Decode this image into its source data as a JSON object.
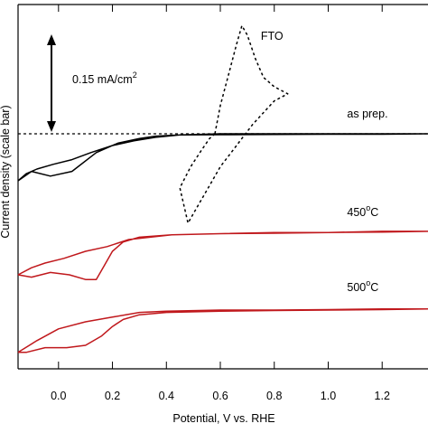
{
  "chart_data": {
    "type": "line",
    "title": "",
    "xlabel": "Potential, V vs. RHE",
    "ylabel": "Current density (scale bar)",
    "xlim": [
      -0.15,
      1.37
    ],
    "ylim": [
      -1.0,
      0.55
    ],
    "x_ticks": [
      -0.2,
      0.0,
      0.2,
      0.4,
      0.6,
      0.8,
      1.0,
      1.2
    ],
    "x_tick_labels": [
      "0.0",
      "0.2",
      "0.4",
      "0.6",
      "0.8",
      "1.0",
      "1.2"
    ],
    "y_ticks_visible": false,
    "grid": false,
    "legend": "none",
    "scale_bar": {
      "label": "0.15 mA/cm",
      "superscript": "2",
      "value_mA_cm2": 0.15
    },
    "reference_line": {
      "style": "dashed",
      "y": 0.0
    },
    "series": [
      {
        "name": "FTO",
        "color": "#000000",
        "style": "dashed",
        "x": [
          0.58,
          0.6,
          0.63,
          0.66,
          0.68,
          0.7,
          0.73,
          0.76,
          0.8,
          0.85,
          0.8,
          0.76,
          0.72,
          0.68,
          0.64,
          0.6,
          0.57,
          0.54,
          0.51,
          0.48,
          0.45,
          0.49,
          0.53,
          0.56,
          0.58
        ],
        "y": [
          0.0,
          0.12,
          0.25,
          0.38,
          0.46,
          0.42,
          0.32,
          0.24,
          0.2,
          0.17,
          0.14,
          0.09,
          0.04,
          -0.02,
          -0.08,
          -0.14,
          -0.2,
          -0.26,
          -0.32,
          -0.38,
          -0.23,
          -0.14,
          -0.07,
          -0.02,
          0.0
        ]
      },
      {
        "name": "as prep.",
        "color": "#000000",
        "style": "solid",
        "x": [
          -0.15,
          -0.12,
          -0.08,
          -0.02,
          0.05,
          0.12,
          0.2,
          0.28,
          0.36,
          0.45,
          0.6,
          0.8,
          1.0,
          1.2,
          1.37,
          1.2,
          1.0,
          0.8,
          0.6,
          0.45,
          0.36,
          0.3,
          0.22,
          0.14,
          0.05,
          -0.03,
          -0.1,
          -0.15
        ],
        "y": [
          -0.2,
          -0.17,
          -0.15,
          -0.13,
          -0.11,
          -0.08,
          -0.05,
          -0.03,
          -0.015,
          -0.005,
          0.0,
          0.0,
          0.0,
          0.0,
          0.0,
          -0.002,
          -0.002,
          -0.003,
          -0.004,
          -0.005,
          -0.01,
          -0.02,
          -0.04,
          -0.08,
          -0.16,
          -0.18,
          -0.16,
          -0.2
        ]
      },
      {
        "name": "450°C",
        "color": "#c0181c",
        "style": "solid",
        "x": [
          -0.15,
          -0.1,
          -0.05,
          0.02,
          0.1,
          0.18,
          0.26,
          0.34,
          0.42,
          0.6,
          0.8,
          1.0,
          1.2,
          1.37,
          1.2,
          1.0,
          0.8,
          0.6,
          0.42,
          0.3,
          0.24,
          0.2,
          0.17,
          0.14,
          0.1,
          0.04,
          -0.03,
          -0.1,
          -0.15
        ],
        "y": [
          -0.6,
          -0.57,
          -0.55,
          -0.53,
          -0.5,
          -0.48,
          -0.45,
          -0.44,
          -0.43,
          -0.425,
          -0.42,
          -0.42,
          -0.415,
          -0.415,
          -0.418,
          -0.42,
          -0.423,
          -0.425,
          -0.43,
          -0.44,
          -0.46,
          -0.5,
          -0.56,
          -0.62,
          -0.62,
          -0.6,
          -0.59,
          -0.61,
          -0.6
        ]
      },
      {
        "name": "500°C",
        "color": "#c0181c",
        "style": "solid",
        "x": [
          -0.15,
          -0.08,
          0.0,
          0.1,
          0.2,
          0.3,
          0.4,
          0.6,
          0.8,
          1.0,
          1.2,
          1.37,
          1.2,
          1.0,
          0.8,
          0.6,
          0.4,
          0.3,
          0.24,
          0.2,
          0.16,
          0.1,
          0.03,
          -0.05,
          -0.12,
          -0.15
        ],
        "y": [
          -0.93,
          -0.88,
          -0.83,
          -0.8,
          -0.78,
          -0.76,
          -0.755,
          -0.75,
          -0.75,
          -0.748,
          -0.745,
          -0.745,
          -0.748,
          -0.75,
          -0.752,
          -0.755,
          -0.76,
          -0.77,
          -0.79,
          -0.82,
          -0.86,
          -0.9,
          -0.91,
          -0.91,
          -0.93,
          -0.93
        ]
      }
    ],
    "annotations": [
      {
        "text": "FTO",
        "x": 0.75,
        "y": 0.4
      },
      {
        "text": "as prep.",
        "x": 1.07,
        "y": 0.07
      },
      {
        "text": "450",
        "sup": "o",
        "tail": "C",
        "x": 1.07,
        "y": -0.35
      },
      {
        "text": "500",
        "sup": "o",
        "tail": "C",
        "x": 1.07,
        "y": -0.67
      }
    ]
  }
}
